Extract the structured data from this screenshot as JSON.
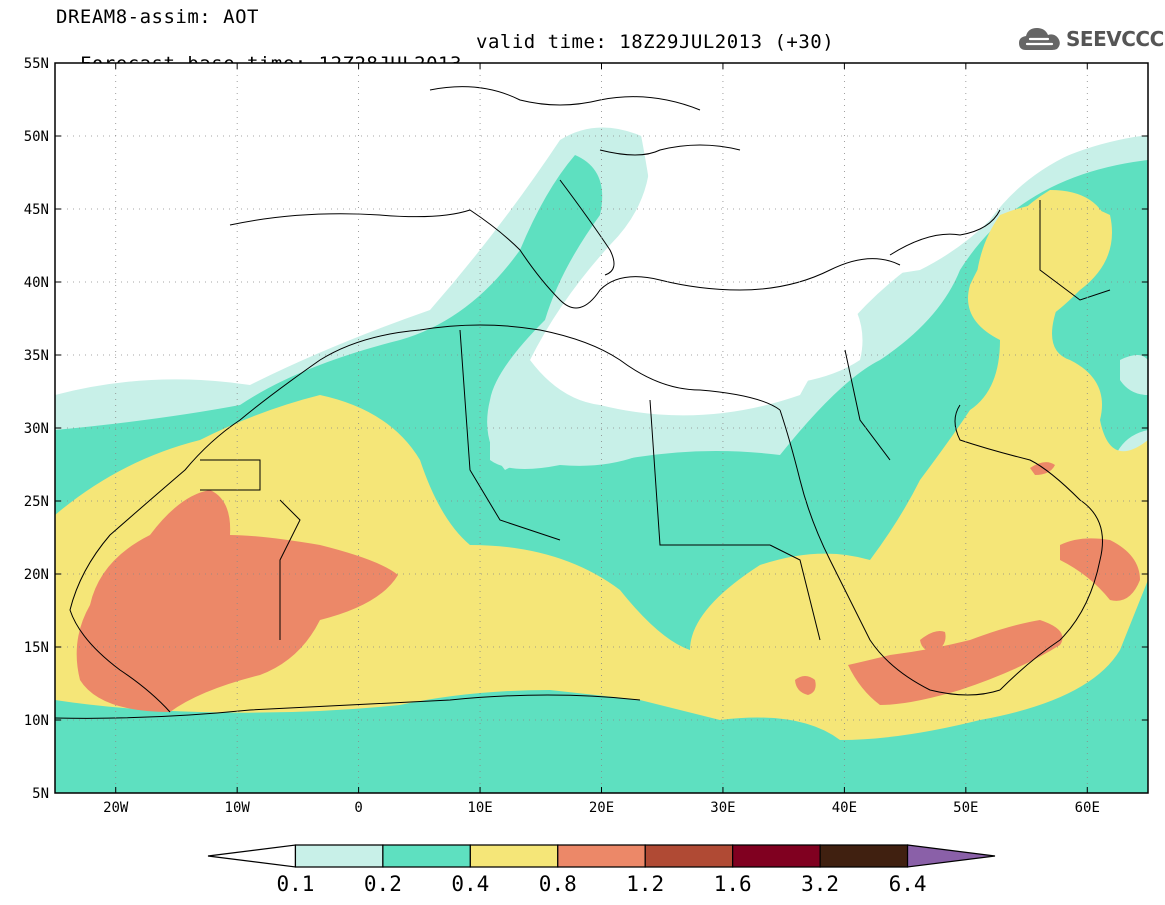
{
  "header": {
    "title": "DREAM8-assim: AOT",
    "base_time": "Forecast base time: 12Z28JUL2013",
    "valid_time": "valid time: 18Z29JUL2013 (+30)",
    "logo_text": "SEEVCCC",
    "logo_icon": "cloud-icon"
  },
  "map": {
    "lat_labels": [
      "55N",
      "50N",
      "45N",
      "40N",
      "35N",
      "30N",
      "25N",
      "20N",
      "15N",
      "10N",
      "5N"
    ],
    "lon_labels": [
      "20W",
      "10W",
      "0",
      "10E",
      "20E",
      "30E",
      "40E",
      "50E",
      "60E"
    ]
  },
  "colorbar": {
    "labels": [
      "0.1",
      "0.2",
      "0.4",
      "0.8",
      "1.2",
      "1.6",
      "3.2",
      "6.4"
    ],
    "colors": [
      "#ffffff",
      "#c8f0e8",
      "#5ee0c0",
      "#f5e678",
      "#ec8868",
      "#b04a34",
      "#800020",
      "#402010",
      "#8a60a8"
    ]
  },
  "fill_colors": {
    "c01": "#c8f0e8",
    "c02": "#5ee0c0",
    "c04": "#f5e678",
    "c08": "#ec8868"
  }
}
